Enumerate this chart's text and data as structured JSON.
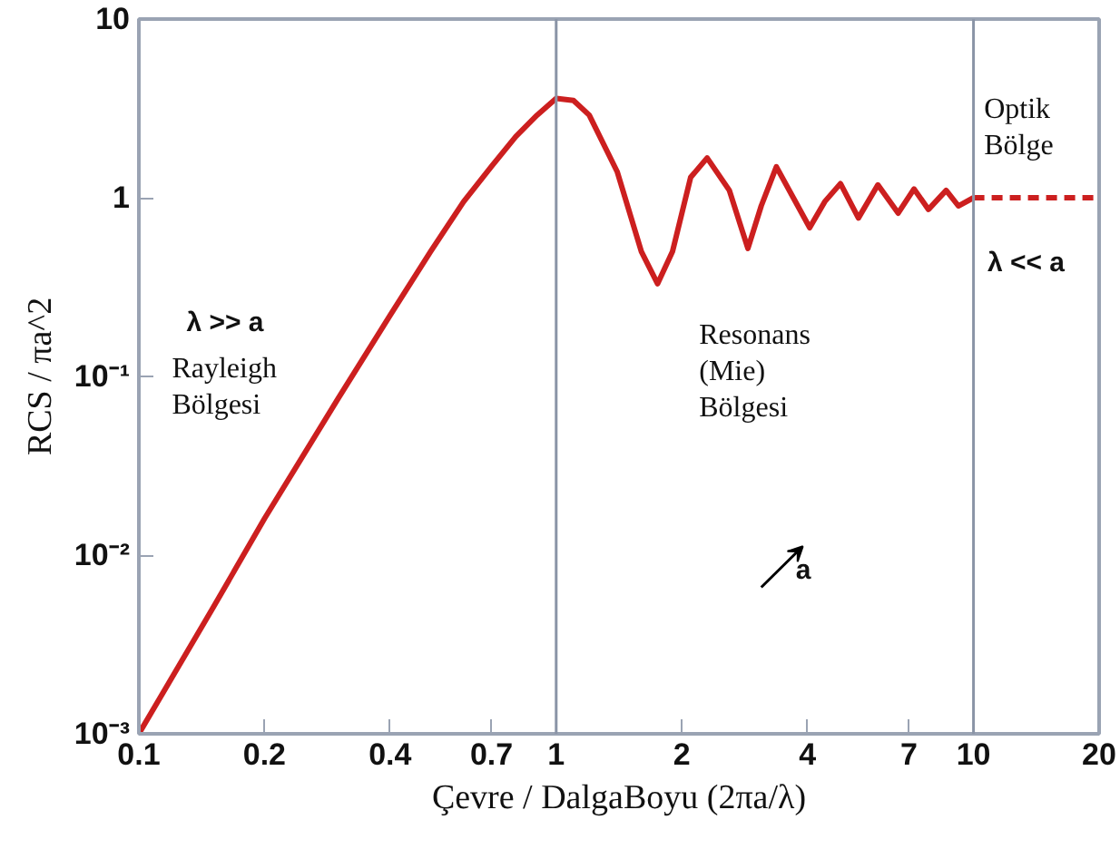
{
  "chart_data": {
    "type": "line",
    "xlabel": "Çevre / DalgaBoyu (2πa/λ)",
    "ylabel": "RCS / πa^2",
    "log": "xy",
    "grid": false,
    "xlim": [
      0.1,
      20
    ],
    "ylim": [
      0.001,
      10
    ],
    "xticks": [
      0.1,
      0.2,
      0.4,
      0.7,
      1,
      2,
      4,
      7,
      10,
      20
    ],
    "yticks": [
      {
        "value": 0.001,
        "label": "10⁻³"
      },
      {
        "value": 0.01,
        "label": "10⁻²"
      },
      {
        "value": 0.1,
        "label": "10⁻¹"
      },
      1,
      10
    ],
    "ref_lines": [
      {
        "axis": "x",
        "value": 1,
        "color": "#8a94a6"
      },
      {
        "axis": "x",
        "value": 10,
        "color": "#8a94a6"
      }
    ],
    "annotations": [
      "λ >> a",
      "Rayleigh Bölgesi",
      "Resonans (Mie) Bölgesi",
      "Optik Bölge",
      "λ << a",
      "a"
    ],
    "series": [
      {
        "color": "#cc1f1f",
        "line_style": "solid",
        "x": [
          0.1,
          0.15,
          0.2,
          0.3,
          0.4,
          0.5,
          0.6,
          0.7,
          0.8,
          0.9,
          1.0,
          1.1,
          1.2,
          1.4,
          1.6,
          1.75,
          1.9,
          2.1,
          2.3,
          2.6,
          2.88,
          3.1,
          3.37,
          3.7,
          4.05,
          4.4,
          4.8,
          5.3,
          5.9,
          6.6,
          7.2,
          7.8,
          8.6,
          9.2,
          10
        ],
        "values": [
          0.001,
          0.005,
          0.016,
          0.075,
          0.22,
          0.5,
          0.95,
          1.5,
          2.2,
          2.9,
          3.6,
          3.5,
          2.9,
          1.4,
          0.5,
          0.33,
          0.5,
          1.3,
          1.67,
          1.1,
          0.52,
          0.9,
          1.49,
          1.0,
          0.68,
          0.95,
          1.2,
          0.77,
          1.18,
          0.82,
          1.12,
          0.86,
          1.1,
          0.9,
          1.0
        ]
      },
      {
        "color": "#cc1f1f",
        "line_style": "dashed",
        "x": [
          10,
          20
        ],
        "values": [
          1.0,
          1.0
        ]
      }
    ]
  }
}
